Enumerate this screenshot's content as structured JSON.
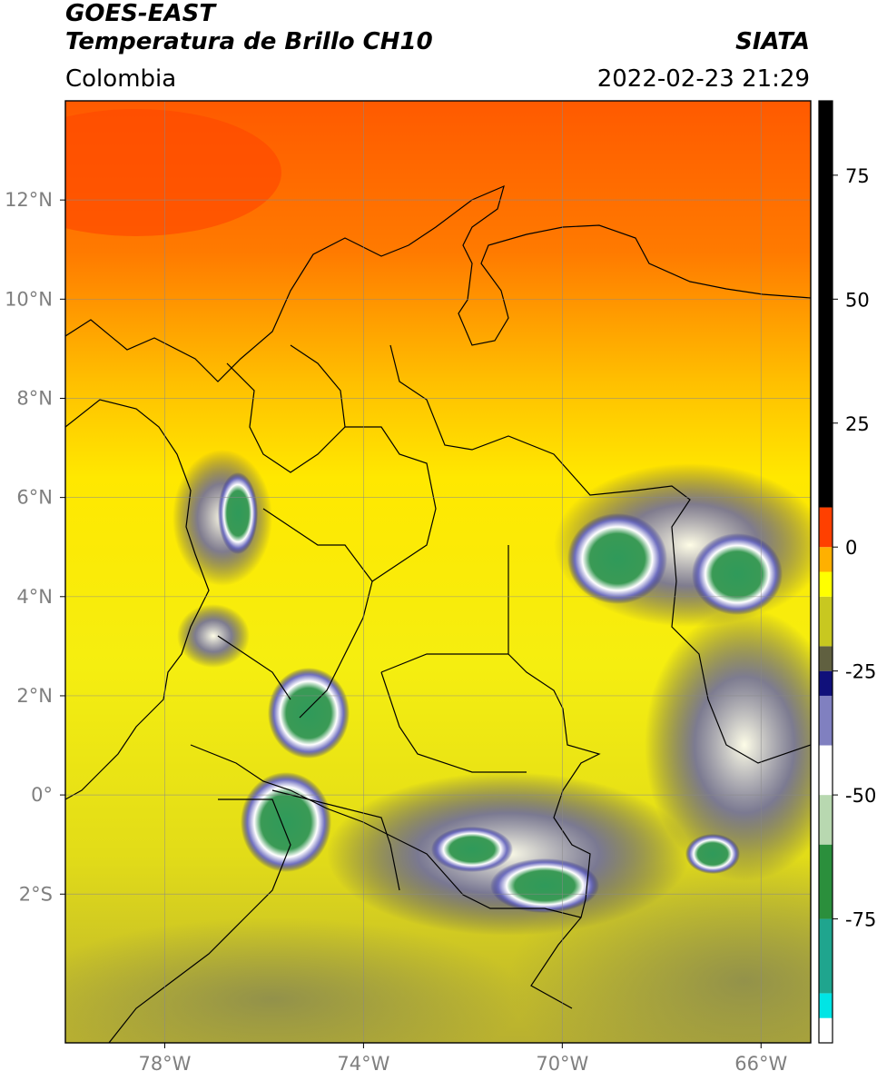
{
  "header": {
    "line1": "GOES-EAST",
    "line2": "Temperatura de Brillo CH10",
    "brand": "SIATA",
    "region": "Colombia",
    "timestamp": "2022-02-23 21:29"
  },
  "map": {
    "lon_range": [
      -80.0,
      -65.0
    ],
    "lat_range": [
      -5.0,
      14.0
    ],
    "lon_ticks": [
      {
        "value": -78,
        "label": "78°W"
      },
      {
        "value": -74,
        "label": "74°W"
      },
      {
        "value": -70,
        "label": "70°W"
      },
      {
        "value": -66,
        "label": "66°W"
      }
    ],
    "lat_ticks": [
      {
        "value": 12,
        "label": "12°N"
      },
      {
        "value": 10,
        "label": "10°N"
      },
      {
        "value": 8,
        "label": "8°N"
      },
      {
        "value": 6,
        "label": "6°N"
      },
      {
        "value": 4,
        "label": "4°N"
      },
      {
        "value": 2,
        "label": "2°N"
      },
      {
        "value": 0,
        "label": "0°"
      },
      {
        "value": -2,
        "label": "2°S"
      }
    ],
    "grid": true
  },
  "colorbar": {
    "range": [
      -100,
      90
    ],
    "ticks": [
      {
        "value": 75,
        "label": "75"
      },
      {
        "value": 50,
        "label": "50"
      },
      {
        "value": 25,
        "label": "25"
      },
      {
        "value": 0,
        "label": "0"
      },
      {
        "value": -25,
        "label": "-25"
      },
      {
        "value": -50,
        "label": "-50"
      },
      {
        "value": -75,
        "label": "-75"
      }
    ],
    "segments": [
      {
        "from": -100,
        "to": -95,
        "color": "#ffffff"
      },
      {
        "from": -95,
        "to": -90,
        "color": "#00e5e5"
      },
      {
        "from": -90,
        "to": -75,
        "color": "#1fa58e"
      },
      {
        "from": -75,
        "to": -60,
        "color": "#2b8f3c"
      },
      {
        "from": -60,
        "to": -50,
        "color": "#b8d8b0"
      },
      {
        "from": -50,
        "to": -40,
        "color": "#ffffff"
      },
      {
        "from": -40,
        "to": -30,
        "color": "#8080c0"
      },
      {
        "from": -30,
        "to": -25,
        "color": "#10107a"
      },
      {
        "from": -25,
        "to": -20,
        "color": "#606040"
      },
      {
        "from": -20,
        "to": -10,
        "color": "#c8c820"
      },
      {
        "from": -10,
        "to": -5,
        "color": "#ffff00"
      },
      {
        "from": -5,
        "to": 0,
        "color": "#ffb000"
      },
      {
        "from": 0,
        "to": 8,
        "color": "#ff4000"
      },
      {
        "from": 8,
        "to": 90,
        "color": "#000000"
      }
    ]
  }
}
